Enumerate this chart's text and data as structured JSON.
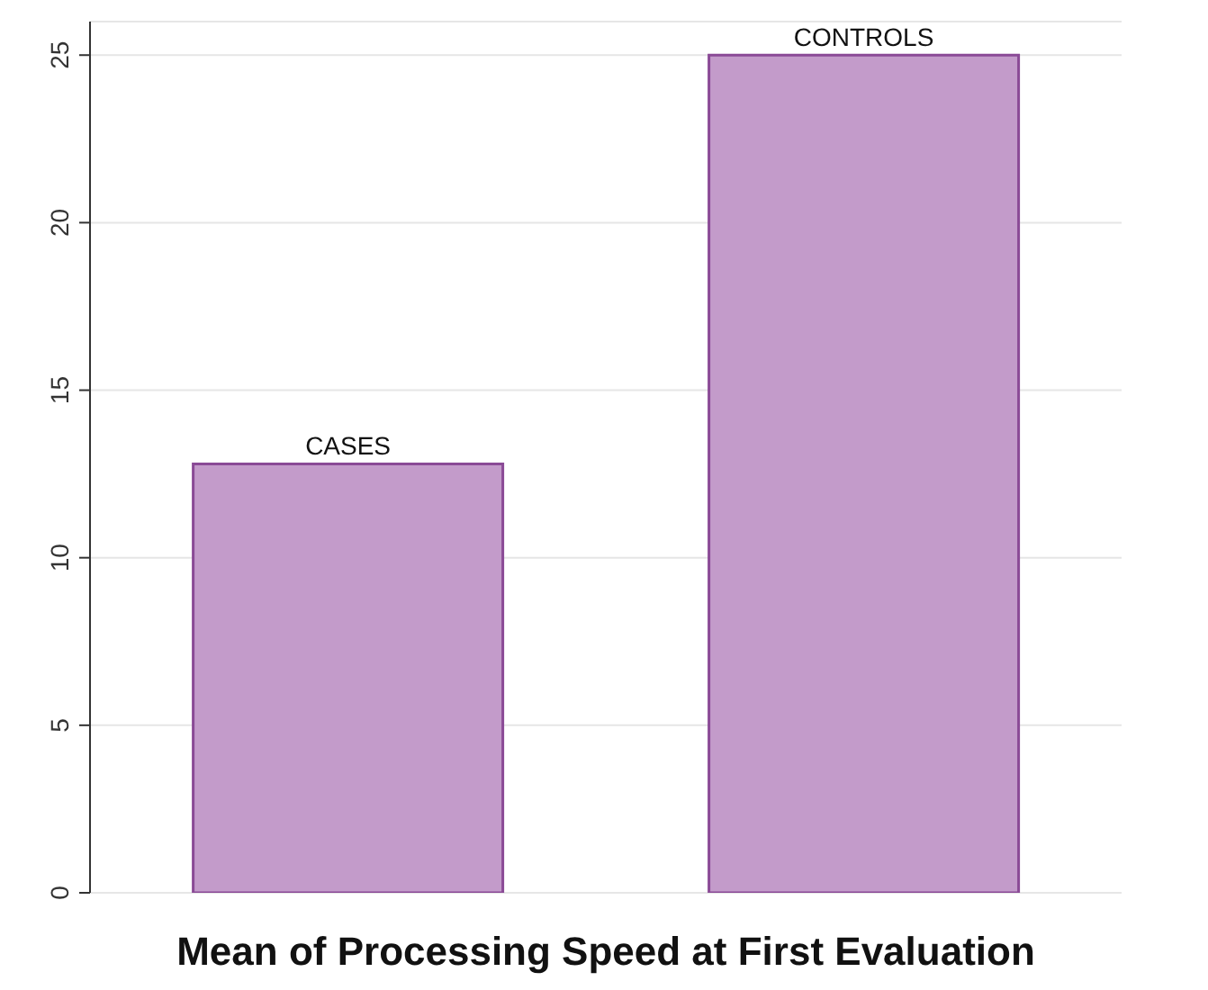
{
  "chart_data": {
    "type": "bar",
    "xlabel": "Mean of Processing Speed at First Evaluation",
    "categories": [
      "CASES",
      "CONTROLS"
    ],
    "values": [
      12.8,
      25.0
    ],
    "color": "#c39bca",
    "ylim": [
      0,
      26
    ],
    "yticks": [
      0,
      5,
      10,
      15,
      20,
      25
    ],
    "grid": "y"
  }
}
